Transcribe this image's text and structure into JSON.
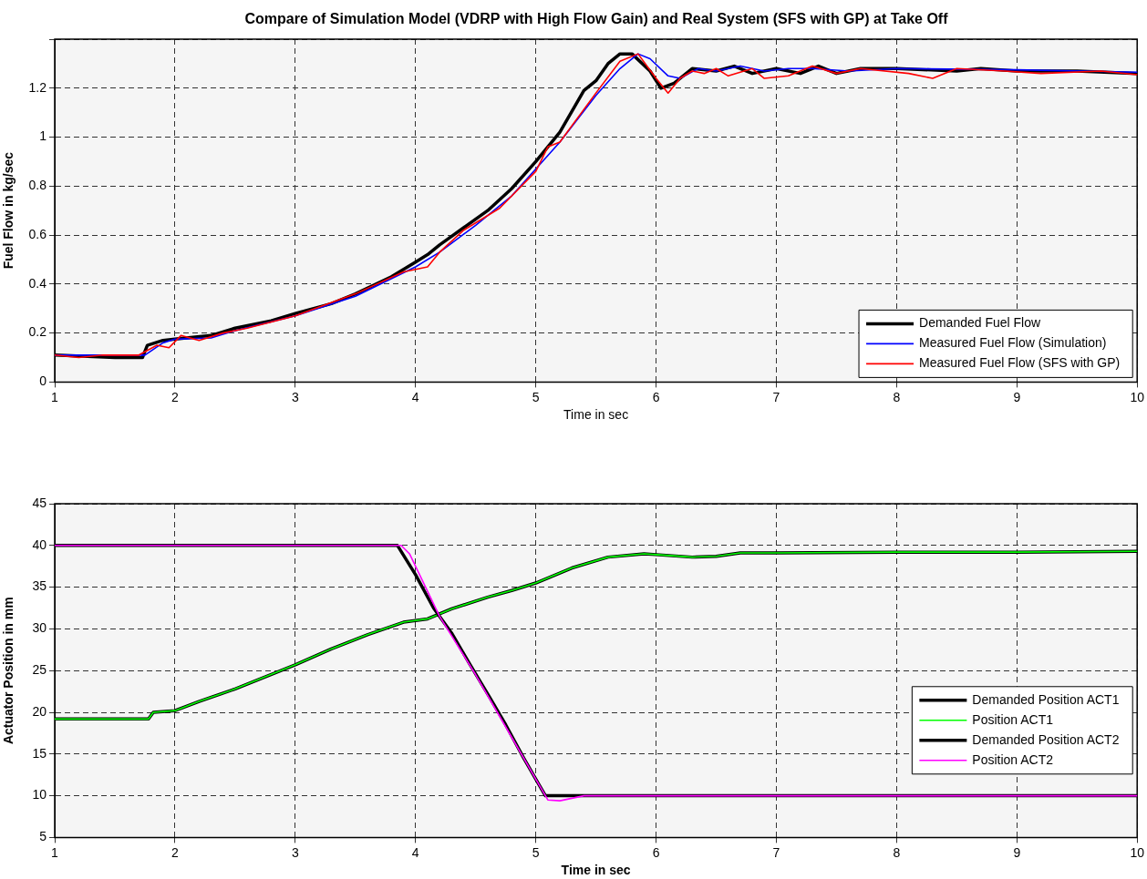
{
  "chart_data": [
    {
      "type": "line",
      "title": "Compare of Simulation Model (VDRP with High Flow Gain) and Real System (SFS with GP) at Take Off",
      "xlabel": "Time in sec",
      "ylabel": "Fuel Flow in kg/sec",
      "xlim": [
        1,
        10
      ],
      "xticks": [
        1,
        2,
        3,
        4,
        5,
        6,
        7,
        8,
        9,
        10
      ],
      "ylim": [
        0,
        1.4
      ],
      "yticks": [
        0,
        0.2,
        0.4,
        0.6,
        0.8,
        1,
        1.2,
        {
          "value": 1.4,
          "label": null
        }
      ],
      "grid": true,
      "legend": "bottom right",
      "line_style": "solid",
      "marker": "none",
      "series": [
        {
          "name": "Demanded Fuel Flow",
          "color": "#000000",
          "x": [
            1.0,
            1.5,
            1.73,
            1.77,
            1.9,
            2.0,
            2.3,
            2.5,
            2.8,
            3.0,
            3.3,
            3.5,
            3.8,
            4.0,
            4.1,
            4.2,
            4.4,
            4.6,
            4.8,
            5.0,
            5.2,
            5.4,
            5.5,
            5.6,
            5.7,
            5.8,
            5.95,
            6.04,
            6.15,
            6.3,
            6.5,
            6.65,
            6.8,
            7.0,
            7.2,
            7.35,
            7.5,
            7.7,
            8.0,
            8.5,
            8.7,
            9.0,
            9.5,
            10.0
          ],
          "values": [
            0.11,
            0.1,
            0.1,
            0.15,
            0.17,
            0.175,
            0.19,
            0.22,
            0.25,
            0.28,
            0.32,
            0.36,
            0.43,
            0.49,
            0.52,
            0.56,
            0.63,
            0.7,
            0.79,
            0.9,
            1.02,
            1.19,
            1.23,
            1.3,
            1.34,
            1.34,
            1.27,
            1.2,
            1.22,
            1.28,
            1.27,
            1.29,
            1.26,
            1.28,
            1.26,
            1.29,
            1.26,
            1.28,
            1.28,
            1.27,
            1.28,
            1.27,
            1.27,
            1.26
          ]
        },
        {
          "name": "Measured Fuel Flow (Simulation)",
          "color": "#0000ff",
          "x": [
            1.0,
            1.75,
            1.9,
            2.0,
            2.3,
            2.5,
            3.0,
            3.5,
            4.0,
            4.2,
            4.5,
            4.8,
            5.0,
            5.2,
            5.5,
            5.7,
            5.85,
            5.95,
            6.1,
            6.2,
            6.35,
            6.5,
            6.7,
            6.9,
            7.1,
            7.3,
            7.6,
            8.0,
            9.0,
            10.0
          ],
          "values": [
            0.11,
            0.11,
            0.16,
            0.175,
            0.18,
            0.21,
            0.27,
            0.35,
            0.47,
            0.53,
            0.64,
            0.76,
            0.87,
            0.98,
            1.17,
            1.28,
            1.34,
            1.32,
            1.25,
            1.24,
            1.28,
            1.27,
            1.29,
            1.27,
            1.28,
            1.28,
            1.27,
            1.28,
            1.275,
            1.265
          ]
        },
        {
          "name": "Measured Fuel Flow (SFS with GP)",
          "color": "#ff0000",
          "x": [
            1.0,
            1.2,
            1.4,
            1.7,
            1.85,
            1.95,
            2.05,
            2.2,
            2.4,
            2.6,
            3.0,
            3.5,
            3.9,
            4.1,
            4.2,
            4.4,
            4.7,
            5.0,
            5.1,
            5.2,
            5.5,
            5.7,
            5.85,
            6.0,
            6.1,
            6.2,
            6.3,
            6.4,
            6.5,
            6.6,
            6.8,
            6.9,
            7.1,
            7.3,
            7.5,
            7.7,
            8.1,
            8.3,
            8.5,
            8.9,
            9.2,
            9.7,
            10.0
          ],
          "values": [
            0.11,
            0.1,
            0.11,
            0.11,
            0.15,
            0.14,
            0.19,
            0.17,
            0.2,
            0.22,
            0.27,
            0.36,
            0.45,
            0.47,
            0.53,
            0.62,
            0.71,
            0.86,
            0.96,
            0.98,
            1.18,
            1.31,
            1.34,
            1.24,
            1.18,
            1.24,
            1.27,
            1.26,
            1.28,
            1.25,
            1.28,
            1.24,
            1.25,
            1.29,
            1.26,
            1.28,
            1.26,
            1.24,
            1.28,
            1.27,
            1.26,
            1.27,
            1.255
          ]
        }
      ]
    },
    {
      "type": "line",
      "xlabel": "Time in sec",
      "ylabel": "Actuator Position in mm",
      "xlim": [
        1,
        10
      ],
      "xticks": [
        1,
        2,
        3,
        4,
        5,
        6,
        7,
        8,
        9,
        10
      ],
      "ylim": [
        5,
        45
      ],
      "yticks": [
        5,
        10,
        15,
        20,
        25,
        30,
        35,
        40,
        45
      ],
      "grid": true,
      "legend": "bottom right",
      "line_style": "solid",
      "marker": "none",
      "series": [
        {
          "name": "Demanded Position ACT1",
          "color": "#000000",
          "x": [
            1.0,
            1.78,
            1.82,
            2.0,
            2.2,
            2.5,
            3.0,
            3.3,
            3.6,
            3.9,
            4.1,
            4.3,
            4.6,
            4.8,
            5.0,
            5.3,
            5.6,
            5.9,
            6.0,
            6.3,
            6.5,
            6.7,
            7.0,
            8.0,
            9.0,
            10.0
          ],
          "values": [
            19.2,
            19.2,
            20,
            20.2,
            21.3,
            22.8,
            25.7,
            27.6,
            29.3,
            30.8,
            31.2,
            32.4,
            33.8,
            34.6,
            35.5,
            37.3,
            38.6,
            39,
            38.9,
            38.6,
            38.7,
            39.1,
            39.1,
            39.2,
            39.2,
            39.3
          ]
        },
        {
          "name": "Position ACT1",
          "color": "#00ff00",
          "x": [
            1.0,
            1.78,
            1.82,
            2.0,
            2.2,
            2.5,
            3.0,
            3.3,
            3.6,
            3.9,
            4.1,
            4.3,
            4.6,
            4.8,
            5.0,
            5.3,
            5.6,
            5.9,
            6.0,
            6.3,
            6.5,
            6.7,
            7.0,
            8.0,
            9.0,
            10.0
          ],
          "values": [
            19.2,
            19.2,
            20,
            20.2,
            21.3,
            22.8,
            25.7,
            27.6,
            29.3,
            30.8,
            31.2,
            32.4,
            33.8,
            34.6,
            35.5,
            37.3,
            38.6,
            39,
            38.9,
            38.6,
            38.7,
            39.1,
            39.1,
            39.2,
            39.2,
            39.3
          ]
        },
        {
          "name": "Demanded Position ACT2",
          "color": "#000000",
          "x": [
            1.0,
            3.85,
            4.0,
            4.15,
            4.3,
            4.45,
            4.6,
            4.75,
            4.9,
            5.0,
            5.08,
            10.0
          ],
          "values": [
            40,
            40,
            36.5,
            32.5,
            29.5,
            25.8,
            22.2,
            18.5,
            14.5,
            12,
            10,
            10
          ]
        },
        {
          "name": "Position ACT2",
          "color": "#ff00ff",
          "x": [
            1.0,
            3.88,
            3.95,
            4.2,
            4.5,
            4.8,
            5.0,
            5.1,
            5.2,
            5.4,
            10.0
          ],
          "values": [
            40,
            40,
            39,
            31.5,
            24.5,
            17,
            12,
            9.5,
            9.4,
            10,
            10
          ]
        }
      ]
    }
  ]
}
